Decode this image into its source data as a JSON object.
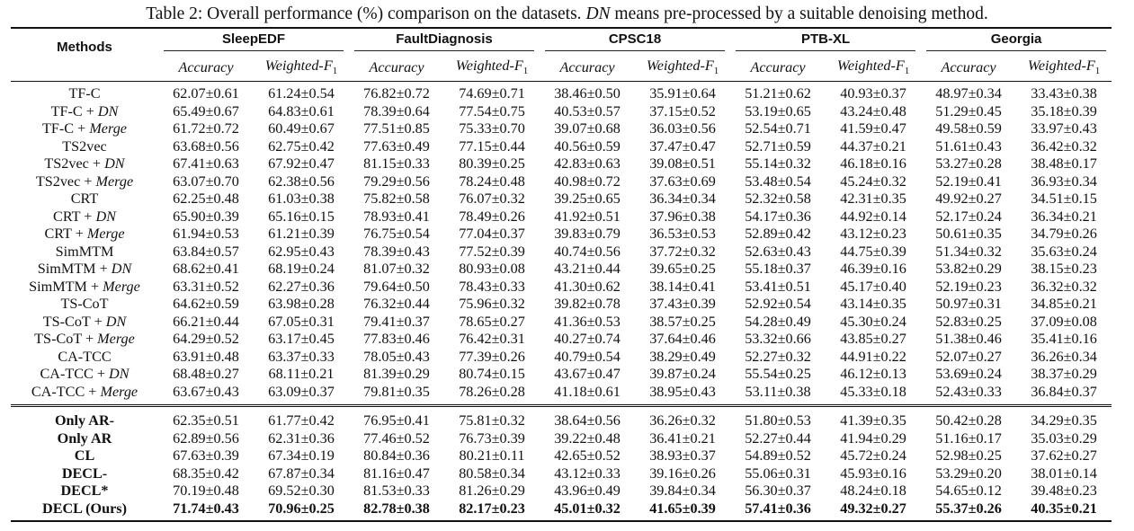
{
  "caption": {
    "lead": "Table 2: Overall performance (%) comparison on the datasets.",
    "term": "DN",
    "tail": "means pre-processed by a suitable denoising method."
  },
  "table": {
    "method_header": "Methods",
    "datasets": [
      "SleepEDF",
      "FaultDiagnosis",
      "CPSC18",
      "PTB-XL",
      "Georgia"
    ],
    "metrics": [
      {
        "text": "Accuracy"
      },
      {
        "text": "Weighted-F",
        "sub": "1"
      }
    ],
    "groups": [
      {
        "bold_method": false,
        "rows": [
          {
            "method": "TF-C",
            "values": [
              "62.07±0.61",
              "61.24±0.54",
              "76.82±0.72",
              "74.69±0.71",
              "38.46±0.50",
              "35.91±0.64",
              "51.21±0.62",
              "40.93±0.37",
              "48.97±0.34",
              "33.43±0.38"
            ]
          },
          {
            "method": "TF-C +",
            "suffix": "DN",
            "values": [
              "65.49±0.67",
              "64.83±0.61",
              "78.39±0.64",
              "77.54±0.75",
              "40.53±0.57",
              "37.15±0.52",
              "53.19±0.65",
              "43.24±0.48",
              "51.29±0.45",
              "35.18±0.39"
            ]
          },
          {
            "method": "TF-C +",
            "suffix": "Merge",
            "values": [
              "61.72±0.72",
              "60.49±0.67",
              "77.51±0.85",
              "75.33±0.70",
              "39.07±0.68",
              "36.03±0.56",
              "52.54±0.71",
              "41.59±0.47",
              "49.58±0.59",
              "33.97±0.43"
            ]
          },
          {
            "method": "TS2vec",
            "values": [
              "63.68±0.56",
              "62.75±0.42",
              "77.63±0.49",
              "77.15±0.44",
              "40.56±0.59",
              "37.47±0.47",
              "52.71±0.59",
              "44.37±0.21",
              "51.61±0.43",
              "36.42±0.32"
            ]
          },
          {
            "method": "TS2vec +",
            "suffix": "DN",
            "values": [
              "67.41±0.63",
              "67.92±0.47",
              "81.15±0.33",
              "80.39±0.25",
              "42.83±0.63",
              "39.08±0.51",
              "55.14±0.32",
              "46.18±0.16",
              "53.27±0.28",
              "38.48±0.17"
            ]
          },
          {
            "method": "TS2vec +",
            "suffix": "Merge",
            "values": [
              "63.07±0.70",
              "62.38±0.56",
              "79.29±0.56",
              "78.24±0.48",
              "40.98±0.72",
              "37.63±0.69",
              "53.48±0.54",
              "45.24±0.32",
              "52.19±0.41",
              "36.93±0.34"
            ]
          },
          {
            "method": "CRT",
            "values": [
              "62.25±0.48",
              "61.03±0.38",
              "75.82±0.58",
              "76.07±0.32",
              "39.25±0.65",
              "36.34±0.34",
              "52.32±0.58",
              "42.31±0.35",
              "49.92±0.27",
              "34.51±0.15"
            ]
          },
          {
            "method": "CRT +",
            "suffix": "DN",
            "values": [
              "65.90±0.39",
              "65.16±0.15",
              "78.93±0.41",
              "78.49±0.26",
              "41.92±0.51",
              "37.96±0.38",
              "54.17±0.36",
              "44.92±0.14",
              "52.17±0.24",
              "36.34±0.21"
            ]
          },
          {
            "method": "CRT +",
            "suffix": "Merge",
            "values": [
              "61.94±0.53",
              "61.21±0.39",
              "76.75±0.54",
              "77.04±0.37",
              "39.83±0.79",
              "36.53±0.53",
              "52.89±0.42",
              "43.12±0.23",
              "50.61±0.35",
              "34.79±0.26"
            ]
          },
          {
            "method": "SimMTM",
            "values": [
              "63.84±0.57",
              "62.95±0.43",
              "78.39±0.43",
              "77.52±0.39",
              "40.74±0.56",
              "37.72±0.32",
              "52.63±0.43",
              "44.75±0.39",
              "51.34±0.32",
              "35.63±0.24"
            ]
          },
          {
            "method": "SimMTM +",
            "suffix": "DN",
            "values": [
              "68.62±0.41",
              "68.19±0.24",
              "81.07±0.32",
              "80.93±0.08",
              "43.21±0.44",
              "39.65±0.25",
              "55.18±0.37",
              "46.39±0.16",
              "53.82±0.29",
              "38.15±0.23"
            ]
          },
          {
            "method": "SimMTM +",
            "suffix": "Merge",
            "values": [
              "63.31±0.52",
              "62.27±0.36",
              "79.64±0.50",
              "78.43±0.33",
              "41.30±0.62",
              "38.14±0.41",
              "53.41±0.51",
              "45.17±0.40",
              "52.19±0.23",
              "36.32±0.32"
            ]
          },
          {
            "method": "TS-CoT",
            "values": [
              "64.62±0.59",
              "63.98±0.28",
              "76.32±0.44",
              "75.96±0.32",
              "39.82±0.78",
              "37.43±0.39",
              "52.92±0.54",
              "43.14±0.35",
              "50.97±0.31",
              "34.85±0.21"
            ]
          },
          {
            "method": "TS-CoT +",
            "suffix": "DN",
            "values": [
              "66.21±0.44",
              "67.05±0.31",
              "79.41±0.37",
              "78.65±0.27",
              "41.36±0.53",
              "38.57±0.25",
              "54.28±0.49",
              "45.30±0.24",
              "52.83±0.25",
              "37.09±0.08"
            ]
          },
          {
            "method": "TS-CoT +",
            "suffix": "Merge",
            "values": [
              "64.29±0.52",
              "63.17±0.45",
              "77.83±0.46",
              "76.42±0.31",
              "40.27±0.74",
              "37.64±0.46",
              "53.32±0.66",
              "43.85±0.27",
              "51.38±0.46",
              "35.41±0.16"
            ]
          },
          {
            "method": "CA-TCC",
            "values": [
              "63.91±0.48",
              "63.37±0.33",
              "78.05±0.43",
              "77.39±0.26",
              "40.79±0.54",
              "38.29±0.49",
              "52.27±0.32",
              "44.91±0.22",
              "52.07±0.27",
              "36.26±0.34"
            ]
          },
          {
            "method": "CA-TCC +",
            "suffix": "DN",
            "values": [
              "68.48±0.27",
              "68.11±0.21",
              "81.39±0.29",
              "80.74±0.15",
              "43.67±0.47",
              "39.87±0.24",
              "55.54±0.25",
              "46.12±0.13",
              "53.69±0.24",
              "38.37±0.29"
            ]
          },
          {
            "method": "CA-TCC +",
            "suffix": "Merge",
            "values": [
              "63.67±0.43",
              "63.09±0.37",
              "79.81±0.35",
              "78.26±0.28",
              "41.18±0.61",
              "38.95±0.43",
              "53.11±0.38",
              "45.33±0.18",
              "52.43±0.33",
              "36.84±0.37"
            ]
          }
        ]
      },
      {
        "bold_method": true,
        "rows": [
          {
            "method": "Only AR-",
            "values": [
              "62.35±0.51",
              "61.77±0.42",
              "76.95±0.41",
              "75.81±0.32",
              "38.64±0.56",
              "36.26±0.32",
              "51.80±0.53",
              "41.39±0.35",
              "50.42±0.28",
              "34.29±0.35"
            ]
          },
          {
            "method": "Only AR",
            "values": [
              "62.89±0.56",
              "62.31±0.36",
              "77.46±0.52",
              "76.73±0.39",
              "39.22±0.48",
              "36.41±0.21",
              "52.27±0.44",
              "41.94±0.29",
              "51.16±0.17",
              "35.03±0.29"
            ]
          },
          {
            "method": "CL",
            "values": [
              "67.63±0.39",
              "67.34±0.19",
              "80.84±0.36",
              "80.21±0.11",
              "42.65±0.52",
              "38.93±0.37",
              "54.89±0.52",
              "45.72±0.24",
              "52.98±0.25",
              "37.62±0.27"
            ]
          },
          {
            "method": "DECL-",
            "values": [
              "68.35±0.42",
              "67.87±0.34",
              "81.16±0.47",
              "80.58±0.34",
              "43.12±0.33",
              "39.16±0.26",
              "55.06±0.31",
              "45.93±0.16",
              "53.29±0.20",
              "38.01±0.14"
            ]
          },
          {
            "method": "DECL*",
            "values": [
              "70.19±0.48",
              "69.52±0.30",
              "81.53±0.33",
              "81.26±0.29",
              "43.96±0.49",
              "39.84±0.34",
              "56.30±0.37",
              "48.24±0.18",
              "54.65±0.12",
              "39.48±0.23"
            ]
          },
          {
            "method": "DECL (Ours)",
            "bold": true,
            "values": [
              "71.74±0.43",
              "70.96±0.25",
              "82.78±0.38",
              "82.17±0.23",
              "45.01±0.32",
              "41.65±0.39",
              "57.41±0.36",
              "49.32±0.27",
              "55.37±0.26",
              "40.35±0.21"
            ]
          }
        ]
      }
    ]
  }
}
